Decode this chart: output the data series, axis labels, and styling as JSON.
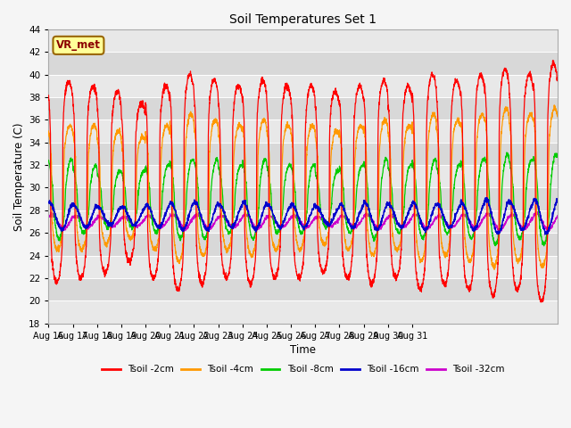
{
  "title": "Soil Temperatures Set 1",
  "xlabel": "Time",
  "ylabel": "Soil Temperature (C)",
  "ylim": [
    18,
    44
  ],
  "yticks": [
    18,
    20,
    22,
    24,
    26,
    28,
    30,
    32,
    34,
    36,
    38,
    40,
    42,
    44
  ],
  "n_days": 21,
  "x_tick_labels": [
    "Aug 16",
    "Aug 17",
    "Aug 18",
    "Aug 19",
    "Aug 20",
    "Aug 21",
    "Aug 22",
    "Aug 23",
    "Aug 24",
    "Aug 25",
    "Aug 26",
    "Aug 27",
    "Aug 28",
    "Aug 29",
    "Aug 30",
    "Aug 31"
  ],
  "series_colors": {
    "Tsoil -2cm": "#ff0000",
    "Tsoil -4cm": "#ff9900",
    "Tsoil -8cm": "#00cc00",
    "Tsoil -16cm": "#0000cc",
    "Tsoil -32cm": "#cc00cc"
  },
  "plot_bg": "#e8e8e8",
  "grid_color": "#ffffff",
  "annotation_text": "VR_met",
  "annotation_bg": "#ffff99",
  "annotation_border": "#996600",
  "band_colors": [
    "#e8e8e8",
    "#d8d8d8"
  ],
  "means": {
    "2cm": 30.5,
    "4cm": 30.0,
    "8cm": 29.0,
    "16cm": 27.5,
    "32cm": 27.0
  },
  "day_amplitudes_2cm": [
    8.8,
    8.5,
    8.0,
    7.0,
    8.5,
    9.5,
    9.0,
    8.5,
    9.0,
    8.5,
    8.5,
    8.0,
    8.5,
    9.0,
    8.5,
    9.5,
    9.0,
    9.5,
    10.0,
    9.5,
    10.5
  ],
  "day_amplitudes_4cm": [
    5.5,
    5.5,
    5.0,
    4.5,
    5.5,
    6.5,
    6.0,
    5.5,
    6.0,
    5.5,
    5.5,
    5.0,
    5.5,
    6.0,
    5.5,
    6.5,
    6.0,
    6.5,
    7.0,
    6.5,
    7.0
  ],
  "day_amplitudes_8cm": [
    3.5,
    3.0,
    2.5,
    2.5,
    3.0,
    3.5,
    3.5,
    3.0,
    3.5,
    3.0,
    3.0,
    2.5,
    3.0,
    3.5,
    3.0,
    3.5,
    3.0,
    3.5,
    4.0,
    3.5,
    4.0
  ],
  "day_amplitudes_16cm": [
    1.2,
    1.0,
    0.8,
    0.8,
    1.0,
    1.2,
    1.2,
    1.0,
    1.2,
    1.0,
    1.0,
    0.8,
    1.0,
    1.2,
    1.0,
    1.2,
    1.0,
    1.2,
    1.5,
    1.2,
    1.5
  ],
  "day_amplitudes_32cm": [
    0.6,
    0.5,
    0.4,
    0.4,
    0.5,
    0.6,
    0.6,
    0.5,
    0.6,
    0.5,
    0.5,
    0.4,
    0.5,
    0.6,
    0.5,
    0.6,
    0.5,
    0.6,
    0.7,
    0.6,
    0.7
  ],
  "phase_lags_hours": {
    "2cm": 0.0,
    "4cm": 1.0,
    "8cm": 2.5,
    "16cm": 5.0,
    "32cm": 7.0
  },
  "n_pts_per_day": 144,
  "sharpness": {
    "2cm": 4.0,
    "4cm": 3.0,
    "8cm": 1.5,
    "16cm": 1.0,
    "32cm": 1.0
  }
}
